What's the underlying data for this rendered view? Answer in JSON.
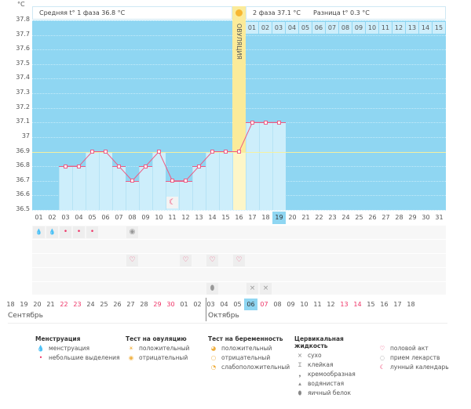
{
  "unit": "°C",
  "header": {
    "phase1": "Средняя t° 1 фаза 36.8 °C",
    "phase2": "2 фаза 37.1 °C",
    "diff": "Разница t° 0.3 °C",
    "ovulation": "ОВУЛЯЦИЯ"
  },
  "y_ticks": [
    "37.8",
    "37.7",
    "37.6",
    "37.5",
    "37.4",
    "37.3",
    "37.2",
    "37.1",
    "37",
    "36.9",
    "36.8",
    "36.7",
    "36.6",
    "36.5"
  ],
  "cycle_days": [
    "01",
    "02",
    "03",
    "04",
    "05",
    "06",
    "07",
    "08",
    "09",
    "10",
    "11",
    "12",
    "13",
    "14",
    "15",
    "16",
    "17",
    "18",
    "19",
    "20",
    "21",
    "22",
    "23",
    "24",
    "25",
    "26",
    "27",
    "28",
    "29",
    "30",
    "31"
  ],
  "phase2_days": [
    "01",
    "02",
    "03",
    "04",
    "05",
    "06",
    "07",
    "08",
    "09",
    "10",
    "11",
    "12",
    "13",
    "14",
    "15"
  ],
  "current_day_index": 18,
  "ovulation_day_index": 15,
  "coverline": 36.9,
  "temperatures": [
    null,
    null,
    36.8,
    36.8,
    36.9,
    36.9,
    36.8,
    36.7,
    36.8,
    36.9,
    36.7,
    36.7,
    36.8,
    36.9,
    36.9,
    36.9,
    37.1,
    37.1,
    37.1
  ],
  "dates": [
    {
      "d": "18"
    },
    {
      "d": "19"
    },
    {
      "d": "20"
    },
    {
      "d": "21"
    },
    {
      "d": "22",
      "red": true
    },
    {
      "d": "23",
      "red": true
    },
    {
      "d": "24"
    },
    {
      "d": "25"
    },
    {
      "d": "26"
    },
    {
      "d": "27"
    },
    {
      "d": "28"
    },
    {
      "d": "29",
      "red": true
    },
    {
      "d": "30",
      "red": true
    },
    {
      "d": "01"
    },
    {
      "d": "02"
    },
    {
      "d": "03"
    },
    {
      "d": "04"
    },
    {
      "d": "05"
    },
    {
      "d": "06",
      "current": true
    },
    {
      "d": "07",
      "red": true
    },
    {
      "d": "08"
    },
    {
      "d": "09"
    },
    {
      "d": "10"
    },
    {
      "d": "11"
    },
    {
      "d": "12"
    },
    {
      "d": "13",
      "red": true
    },
    {
      "d": "14",
      "red": true
    },
    {
      "d": "15"
    },
    {
      "d": "16"
    },
    {
      "d": "17"
    },
    {
      "d": "18"
    }
  ],
  "months": [
    "Сентябрь",
    "Октябрь"
  ],
  "markers": [
    {
      "row": 0,
      "day": 0,
      "icon": "menstruation-icon",
      "glyph": "💧"
    },
    {
      "row": 0,
      "day": 1,
      "icon": "menstruation-icon",
      "glyph": "💧"
    },
    {
      "row": 0,
      "day": 2,
      "icon": "spotting-icon",
      "glyph": "•"
    },
    {
      "row": 0,
      "day": 3,
      "icon": "spotting-icon",
      "glyph": "•"
    },
    {
      "row": 0,
      "day": 4,
      "icon": "spotting-icon",
      "glyph": "•"
    },
    {
      "row": 0,
      "day": 7,
      "icon": "ovulation-test-negative-icon",
      "glyph": "◉"
    },
    {
      "row": 2,
      "day": 7,
      "icon": "intercourse-icon",
      "glyph": "♡"
    },
    {
      "row": 2,
      "day": 11,
      "icon": "intercourse-icon",
      "glyph": "♡"
    },
    {
      "row": 2,
      "day": 13,
      "icon": "intercourse-icon",
      "glyph": "♡"
    },
    {
      "row": 2,
      "day": 15,
      "icon": "intercourse-icon",
      "glyph": "♡"
    },
    {
      "row": 4,
      "day": 13,
      "icon": "egg-white-icon",
      "glyph": "⬮"
    },
    {
      "row": 4,
      "day": 16,
      "icon": "dry-icon",
      "glyph": "×"
    },
    {
      "row": 4,
      "day": 17,
      "icon": "dry-icon",
      "glyph": "×"
    }
  ],
  "moon_day_index": 10,
  "legend": [
    {
      "title": "Менструация",
      "items": [
        {
          "icon": "menstruation-icon",
          "glyph": "💧",
          "label": "менструация"
        },
        {
          "icon": "spotting-icon",
          "glyph": "•",
          "label": "небольшие выделения"
        }
      ]
    },
    {
      "title": "Тест на овуляцию",
      "items": [
        {
          "icon": "ovulation-positive-icon",
          "glyph": "☀",
          "label": "положительный"
        },
        {
          "icon": "ovulation-negative-icon",
          "glyph": "◉",
          "label": "отрицательный"
        }
      ]
    },
    {
      "title": "Тест на беременность",
      "items": [
        {
          "icon": "pregnancy-positive-icon",
          "glyph": "◕",
          "label": "положительный"
        },
        {
          "icon": "pregnancy-negative-icon",
          "glyph": "○",
          "label": "отрицательный"
        },
        {
          "icon": "pregnancy-weak-icon",
          "glyph": "◔",
          "label": "слабоположительный"
        }
      ]
    },
    {
      "title": "Цервикальная жидкость",
      "items": [
        {
          "icon": "dry-icon",
          "glyph": "×",
          "label": "сухо"
        },
        {
          "icon": "sticky-icon",
          "glyph": "Ɪ",
          "label": "клейкая"
        },
        {
          "icon": "creamy-icon",
          "glyph": "❟",
          "label": "кремообразная"
        },
        {
          "icon": "watery-icon",
          "glyph": "▴",
          "label": "водянистая"
        },
        {
          "icon": "egg-white-icon",
          "glyph": "⬮",
          "label": "яичный белок"
        }
      ]
    },
    {
      "title": "",
      "items": [
        {
          "icon": "intercourse-icon",
          "glyph": "♡",
          "label": "половой акт"
        },
        {
          "icon": "pill-icon",
          "glyph": "◌",
          "label": "прием лекарств"
        },
        {
          "icon": "moon-icon",
          "glyph": "☾",
          "label": "лунный календарь"
        }
      ]
    }
  ],
  "colors": {
    "chart_bg": "#8fd6f2",
    "bar": "#cdeefb",
    "line": "#ee5b83",
    "ovulation": "#fbeb9a",
    "coverline": "#f5f0a0",
    "red": "#ee3366"
  }
}
